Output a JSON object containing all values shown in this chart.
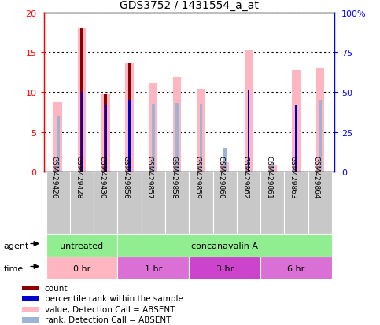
{
  "title": "GDS3752 / 1431554_a_at",
  "samples": [
    "GSM429426",
    "GSM429428",
    "GSM429430",
    "GSM429856",
    "GSM429857",
    "GSM429858",
    "GSM429859",
    "GSM429860",
    "GSM429862",
    "GSM429861",
    "GSM429863",
    "GSM429864"
  ],
  "value_absent": [
    8.8,
    18.0,
    9.7,
    13.6,
    11.1,
    11.9,
    10.4,
    1.2,
    15.2,
    0.8,
    12.8,
    13.0
  ],
  "rank_absent_pct": [
    35.0,
    null,
    null,
    null,
    42.5,
    43.0,
    42.5,
    15.0,
    null,
    5.5,
    42.0,
    45.0
  ],
  "count": [
    null,
    18.0,
    9.7,
    13.6,
    null,
    null,
    null,
    null,
    null,
    null,
    null,
    null
  ],
  "percentile_rank_pct": [
    null,
    50.0,
    41.5,
    45.0,
    null,
    null,
    null,
    null,
    51.5,
    null,
    42.0,
    null
  ],
  "ylim_left": [
    0,
    20
  ],
  "ylim_right": [
    0,
    100
  ],
  "yticks_left": [
    0,
    5,
    10,
    15,
    20
  ],
  "ytick_labels_right": [
    "0",
    "25",
    "50",
    "75",
    "100%"
  ],
  "color_count": "#8B0000",
  "color_percentile": "#0000CD",
  "color_value_absent": "#FFB6C1",
  "color_rank_absent": "#9EB4D4",
  "bar_width": 0.35,
  "thin_bar_width": 0.12,
  "tiny_bar_width": 0.08,
  "agent_groups": [
    {
      "label": "untreated",
      "start": 0,
      "end": 3,
      "color": "#90EE90"
    },
    {
      "label": "concanavalin A",
      "start": 3,
      "end": 12,
      "color": "#90EE90"
    }
  ],
  "time_groups": [
    {
      "label": "0 hr",
      "start": 0,
      "end": 3,
      "color": "#FFB6C1"
    },
    {
      "label": "1 hr",
      "start": 3,
      "end": 6,
      "color": "#DA70D6"
    },
    {
      "label": "3 hr",
      "start": 6,
      "end": 9,
      "color": "#CC44CC"
    },
    {
      "label": "6 hr",
      "start": 9,
      "end": 12,
      "color": "#DA70D6"
    }
  ],
  "legend_items": [
    {
      "color": "#8B0000",
      "label": "count"
    },
    {
      "color": "#0000CD",
      "label": "percentile rank within the sample"
    },
    {
      "color": "#FFB6C1",
      "label": "value, Detection Call = ABSENT"
    },
    {
      "color": "#9EB4D4",
      "label": "rank, Detection Call = ABSENT"
    }
  ]
}
